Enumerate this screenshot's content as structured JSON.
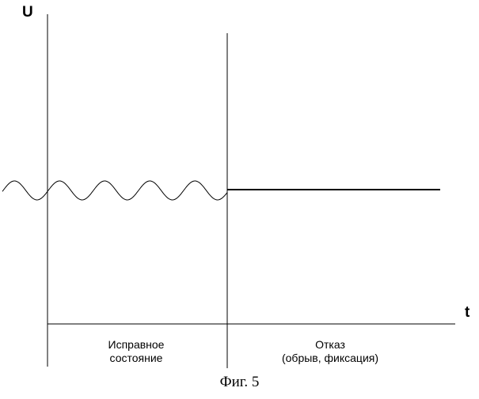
{
  "axes": {
    "y_label": "U",
    "x_label": "t"
  },
  "regions": [
    {
      "line1": "Исправное",
      "line2": "состояние"
    },
    {
      "line1": "Отказ",
      "line2": "(обрыв, фиксация)"
    }
  ],
  "signal": {
    "normal_state": "oscillating",
    "failure_state": "constant"
  },
  "caption": "Фиг. 5",
  "colors": {
    "line": "#000000",
    "background": "#ffffff"
  }
}
